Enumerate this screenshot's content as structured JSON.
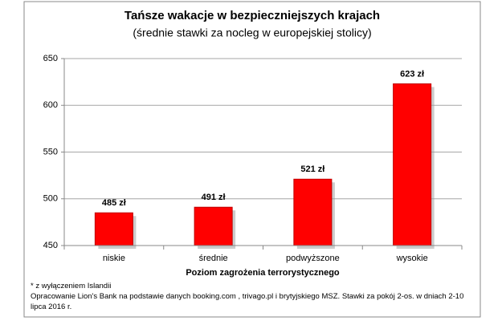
{
  "chart_data": {
    "type": "bar",
    "title": "Tańsze wakacje w bezpieczniejszych krajach",
    "subtitle": "(średnie stawki za nocleg w europejskiej stolicy)",
    "categories": [
      "niskie",
      "średnie",
      "podwyższone",
      "wysokie"
    ],
    "values": [
      485,
      491,
      521,
      623
    ],
    "value_labels": [
      "485 zł",
      "491 zł",
      "521 zł",
      "623 zł"
    ],
    "color": "#ff0000",
    "ylim": [
      450,
      650
    ],
    "yticks": [
      450,
      500,
      550,
      600,
      650
    ],
    "grid": true,
    "x_label": "Poziom zagrożenia terrorystycznego",
    "footnotes": [
      "* z wyłączeniem Islandii",
      "Opracowanie Lion's Bank na podstawie danych booking.com , trivago.pl i brytyjskiego MSZ. Stawki za pokój 2-os. w dniach 2-10 lipca 2016 r."
    ]
  }
}
